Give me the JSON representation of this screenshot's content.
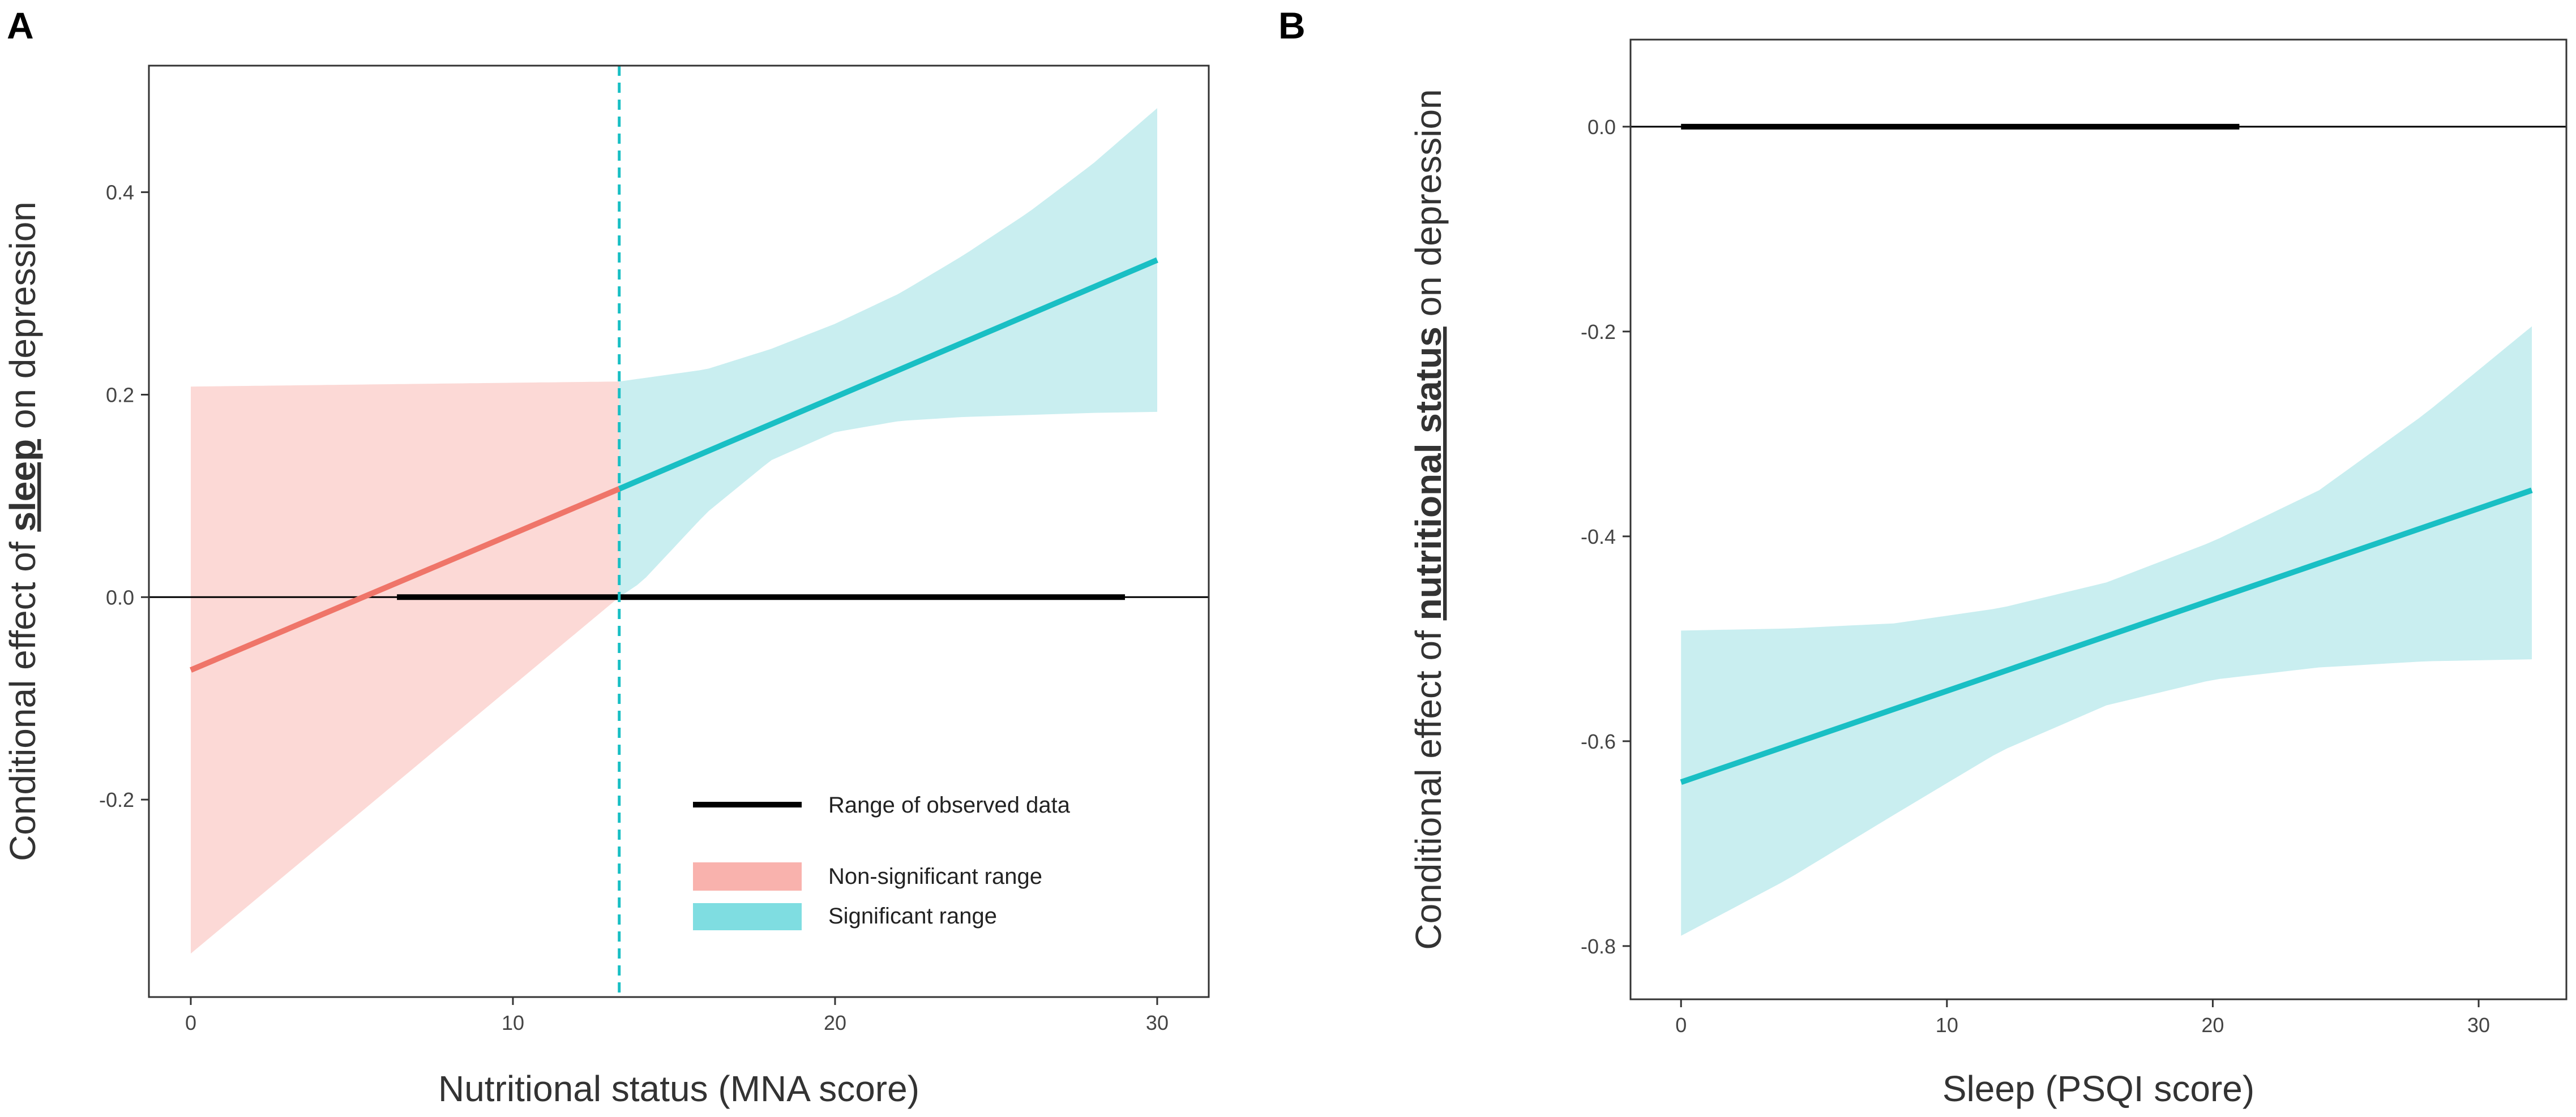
{
  "colors": {
    "nonsig_fill": "#fcd9d6",
    "nonsig_line": "#ef7569",
    "sig_fill": "#c9eef0",
    "sig_line": "#19bfc4",
    "observed": "#000000",
    "axis": "#333333",
    "legend_nonsig": "#f9b2ad",
    "legend_sig": "#7fdde1"
  },
  "chart_data": [
    {
      "panel": "A",
      "type": "line",
      "xlabel": "Nutritional status (MNA score)",
      "ylabel_parts": [
        "Conditional effect of ",
        "sleep",
        " on depression"
      ],
      "xlim": [
        -1.3,
        31.6
      ],
      "ylim": [
        -0.395,
        0.525
      ],
      "xticks": [
        0,
        10,
        20,
        30
      ],
      "yticks": [
        -0.2,
        0.0,
        0.2,
        0.4
      ],
      "ytick_labels": [
        "-0.2",
        "0.0",
        "0.2",
        "0.4"
      ],
      "threshold_x": 13.3,
      "observed_range": [
        6.4,
        29.0
      ],
      "effect_line": {
        "x": [
          0,
          13.3,
          30
        ],
        "y": [
          -0.072,
          0.107,
          0.333
        ]
      },
      "ci_upper": {
        "x": [
          0,
          13.3,
          16,
          18,
          20,
          22,
          24,
          26,
          28,
          30
        ],
        "y": [
          0.208,
          0.213,
          0.225,
          0.245,
          0.27,
          0.3,
          0.338,
          0.38,
          0.428,
          0.483
        ]
      },
      "ci_lower": {
        "x": [
          0,
          13.3,
          14,
          16,
          18,
          20,
          22,
          24,
          26,
          28,
          30
        ],
        "y": [
          -0.352,
          0.0,
          0.015,
          0.083,
          0.135,
          0.163,
          0.174,
          0.178,
          0.18,
          0.182,
          0.183
        ]
      },
      "legend": {
        "observed_label": "Range of observed data",
        "nonsig_label": "Non-significant range",
        "sig_label": "Significant range"
      }
    },
    {
      "panel": "B",
      "type": "line",
      "xlabel": "Sleep (PSQI score)",
      "ylabel_parts": [
        "Conditional effect of ",
        "nutritional status",
        " on depression"
      ],
      "xlim": [
        -1.9,
        33.3
      ],
      "ylim": [
        -0.852,
        0.085
      ],
      "xticks": [
        0,
        10,
        20,
        30
      ],
      "yticks": [
        -0.8,
        -0.6,
        -0.4,
        -0.2,
        0.0
      ],
      "ytick_labels": [
        "-0.8",
        "-0.6",
        "-0.4",
        "-0.2",
        "0.0"
      ],
      "observed_range": [
        0,
        21
      ],
      "effect_line": {
        "x": [
          0,
          32
        ],
        "y": [
          -0.64,
          -0.355
        ]
      },
      "ci_upper": {
        "x": [
          0,
          4,
          8,
          12,
          16,
          20,
          24,
          28,
          32
        ],
        "y": [
          -0.492,
          -0.49,
          -0.485,
          -0.47,
          -0.445,
          -0.405,
          -0.355,
          -0.28,
          -0.195
        ]
      },
      "ci_lower": {
        "x": [
          0,
          4,
          8,
          12,
          16,
          20,
          24,
          28,
          32
        ],
        "y": [
          -0.79,
          -0.735,
          -0.672,
          -0.61,
          -0.565,
          -0.54,
          -0.528,
          -0.522,
          -0.52
        ]
      }
    }
  ]
}
